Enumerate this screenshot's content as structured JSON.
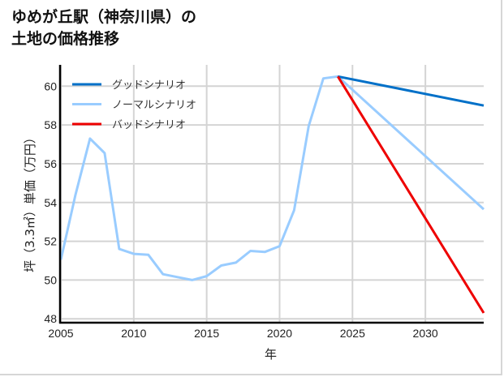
{
  "title_line1": "ゆめが丘駅（神奈川県）の",
  "title_line2": "土地の価格推移",
  "chart_data": {
    "type": "line",
    "title": "ゆめが丘駅（神奈川県）の土地の価格推移",
    "xlabel": "年",
    "ylabel": "坪（3.3㎡）単価（万円）",
    "xlim": [
      2005,
      2034
    ],
    "ylim": [
      47.8,
      61.1
    ],
    "xticks": [
      2005,
      2010,
      2015,
      2020,
      2025,
      2030
    ],
    "yticks": [
      48,
      50,
      52,
      54,
      56,
      58,
      60
    ],
    "grid": true,
    "legend_position": "upper left",
    "series": [
      {
        "name": "グッドシナリオ",
        "color": "#0070c8",
        "x": [
          2024,
          2034
        ],
        "values": [
          60.5,
          59.0
        ]
      },
      {
        "name": "ノーマルシナリオ",
        "color": "#99ccff",
        "x": [
          2005,
          2006,
          2007,
          2008,
          2009,
          2010,
          2011,
          2012,
          2013,
          2014,
          2015,
          2016,
          2017,
          2018,
          2019,
          2020,
          2021,
          2022,
          2023,
          2024,
          2034
        ],
        "values": [
          51.05,
          54.4,
          57.3,
          56.55,
          51.6,
          51.35,
          51.3,
          50.3,
          50.15,
          50.0,
          50.2,
          50.75,
          50.9,
          51.5,
          51.45,
          51.75,
          53.6,
          57.95,
          60.4,
          60.5,
          53.65
        ]
      },
      {
        "name": "バッドシナリオ",
        "color": "#ee0000",
        "x": [
          2024,
          2034
        ],
        "values": [
          60.5,
          48.3
        ]
      }
    ]
  }
}
